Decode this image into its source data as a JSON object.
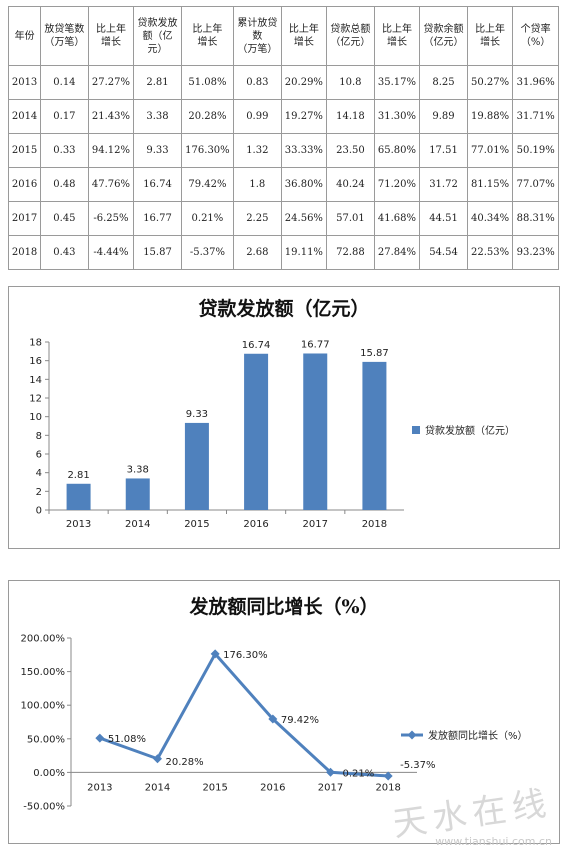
{
  "table": {
    "headers": [
      "年份",
      "放贷笔数\n（万笔）",
      "比上年\n增长",
      "贷款发放\n额（亿\n元）",
      "比上年\n增长",
      "累计放贷\n数\n（万笔）",
      "比上年\n增长",
      "贷款总额\n（亿元）",
      "比上年\n增长",
      "贷款余额\n（亿元）",
      "比上年\n增长",
      "个贷率\n（%）"
    ],
    "rows": [
      [
        "2013",
        "0.14",
        "27.27%",
        "2.81",
        "51.08%",
        "0.83",
        "20.29%",
        "10.8",
        "35.17%",
        "8.25",
        "50.27%",
        "31.96%"
      ],
      [
        "2014",
        "0.17",
        "21.43%",
        "3.38",
        "20.28%",
        "0.99",
        "19.27%",
        "14.18",
        "31.30%",
        "9.89",
        "19.88%",
        "31.71%"
      ],
      [
        "2015",
        "0.33",
        "94.12%",
        "9.33",
        "176.30%",
        "1.32",
        "33.33%",
        "23.50",
        "65.80%",
        "17.51",
        "77.01%",
        "50.19%"
      ],
      [
        "2016",
        "0.48",
        "47.76%",
        "16.74",
        "79.42%",
        "1.8",
        "36.80%",
        "40.24",
        "71.20%",
        "31.72",
        "81.15%",
        "77.07%"
      ],
      [
        "2017",
        "0.45",
        "-6.25%",
        "16.77",
        "0.21%",
        "2.25",
        "24.56%",
        "57.01",
        "41.68%",
        "44.51",
        "40.34%",
        "88.31%"
      ],
      [
        "2018",
        "0.43",
        "-4.44%",
        "15.87",
        "-5.37%",
        "2.68",
        "19.11%",
        "72.88",
        "27.84%",
        "54.54",
        "22.53%",
        "93.23%"
      ]
    ]
  },
  "chart_data": [
    {
      "type": "bar",
      "title": "贷款发放额（亿元）",
      "categories": [
        "2013",
        "2014",
        "2015",
        "2016",
        "2017",
        "2018"
      ],
      "series": [
        {
          "name": "贷款发放额（亿元）",
          "values": [
            2.81,
            3.38,
            9.33,
            16.74,
            16.77,
            15.87
          ]
        }
      ],
      "data_labels": [
        "2.81",
        "3.38",
        "9.33",
        "16.74",
        "16.77",
        "15.87"
      ],
      "yticks": [
        "0",
        "2",
        "4",
        "6",
        "8",
        "10",
        "12",
        "14",
        "16",
        "18"
      ],
      "ylim": [
        0,
        18
      ],
      "legend_position": "right",
      "grid": false,
      "color": "#4f81bd"
    },
    {
      "type": "line",
      "title": "发放额同比增长（%）",
      "categories": [
        "2013",
        "2014",
        "2015",
        "2016",
        "2017",
        "2018"
      ],
      "series": [
        {
          "name": "发放额同比增长（%）",
          "values": [
            51.08,
            20.28,
            176.3,
            79.42,
            0.21,
            -5.37
          ]
        }
      ],
      "data_labels": [
        "51.08%",
        "20.28%",
        "176.30%",
        "79.42%",
        "0.21%",
        "-5.37%"
      ],
      "yticks": [
        "-50.00%",
        "0.00%",
        "50.00%",
        "100.00%",
        "150.00%",
        "200.00%"
      ],
      "ylim": [
        -50,
        200
      ],
      "legend_position": "right",
      "grid": false,
      "color": "#4f81bd"
    }
  ],
  "watermark": {
    "text": "天水在线",
    "url": "www.tianshui.com.cn"
  }
}
